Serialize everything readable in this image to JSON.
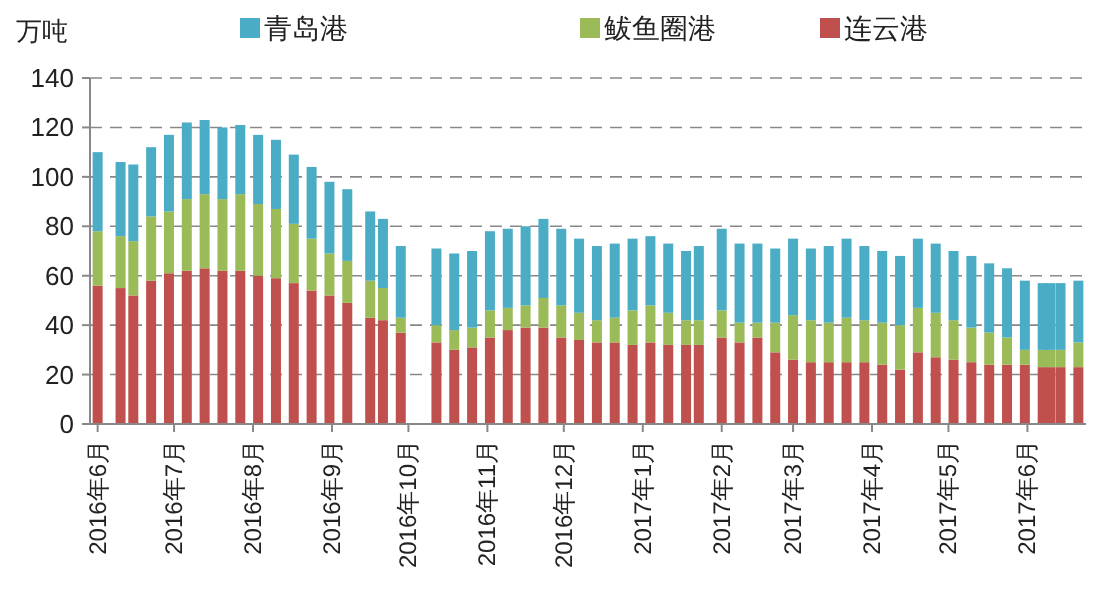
{
  "chart_data": {
    "type": "bar",
    "stacked": true,
    "ylabel": "万吨",
    "legend": "top",
    "grid": "y",
    "x": [
      "2016-06-01",
      "2016-06-10",
      "2016-06-15",
      "2016-06-22",
      "2016-06-29",
      "2016-07-06",
      "2016-07-13",
      "2016-07-20",
      "2016-07-27",
      "2016-08-03",
      "2016-08-10",
      "2016-08-17",
      "2016-08-24",
      "2016-08-31",
      "2016-09-07",
      "2016-09-16",
      "2016-09-21",
      "2016-09-28",
      "2016-10-12",
      "2016-10-19",
      "2016-10-26",
      "2016-11-02",
      "2016-11-09",
      "2016-11-16",
      "2016-11-23",
      "2016-11-30",
      "2016-12-07",
      "2016-12-14",
      "2016-12-21",
      "2016-12-28",
      "2017-01-04",
      "2017-01-11",
      "2017-01-18",
      "2017-01-23",
      "2017-02-01",
      "2017-02-08",
      "2017-02-15",
      "2017-02-22",
      "2017-03-01",
      "2017-03-08",
      "2017-03-15",
      "2017-03-22",
      "2017-03-29",
      "2017-04-05",
      "2017-04-12",
      "2017-04-19",
      "2017-04-26",
      "2017-05-03",
      "2017-05-10",
      "2017-05-17",
      "2017-05-24",
      "2017-05-31",
      "2017-06-07",
      "2017-06-10",
      "2017-06-14",
      "2017-06-21"
    ],
    "xlim": [
      "2016-05-29",
      "2017-06-24"
    ],
    "xticks": [
      {
        "value": "2016-06",
        "label": "2016年6月"
      },
      {
        "value": "2016-07",
        "label": "2016年7月"
      },
      {
        "value": "2016-08",
        "label": "2016年8月"
      },
      {
        "value": "2016-09",
        "label": "2016年9月"
      },
      {
        "value": "2016-10",
        "label": "2016年10月"
      },
      {
        "value": "2016-11",
        "label": "2016年11月"
      },
      {
        "value": "2016-12",
        "label": "2016年12月"
      },
      {
        "value": "2017-01",
        "label": "2017年1月"
      },
      {
        "value": "2017-02",
        "label": "2017年2月"
      },
      {
        "value": "2017-03",
        "label": "2017年3月"
      },
      {
        "value": "2017-04",
        "label": "2017年4月"
      },
      {
        "value": "2017-05",
        "label": "2017年5月"
      },
      {
        "value": "2017-06",
        "label": "2017年6月"
      }
    ],
    "ylim": [
      0,
      140
    ],
    "yticks": [
      0,
      20,
      40,
      60,
      80,
      100,
      120,
      140
    ],
    "series": [
      {
        "name": "连云港",
        "color": "#c0504d",
        "values": [
          56,
          55,
          52,
          58,
          61,
          62,
          63,
          62,
          62,
          60,
          59,
          57,
          54,
          52,
          49,
          43,
          42,
          37,
          33,
          30,
          31,
          35,
          38,
          39,
          39,
          35,
          34,
          33,
          33,
          32,
          33,
          32,
          32,
          32,
          35,
          33,
          35,
          29,
          26,
          25,
          25,
          25,
          25,
          24,
          22,
          29,
          27,
          26,
          25,
          24,
          24,
          24,
          23,
          23,
          23,
          23
        ]
      },
      {
        "name": "鲅鱼圈港",
        "color": "#9bbb59",
        "values": [
          22,
          21,
          22,
          26,
          25,
          29,
          30,
          29,
          31,
          29,
          28,
          24,
          21,
          17,
          17,
          15,
          13,
          6,
          7,
          8,
          8,
          11,
          9,
          9,
          12,
          13,
          11,
          9,
          10,
          14,
          15,
          13,
          10,
          10,
          11,
          8,
          6,
          12,
          18,
          17,
          16,
          18,
          17,
          17,
          18,
          18,
          18,
          16,
          14,
          13,
          11,
          6,
          7,
          7,
          7,
          10
        ]
      },
      {
        "name": "青岛港",
        "color": "#4bacc6",
        "values": [
          32,
          30,
          31,
          28,
          31,
          31,
          30,
          29,
          28,
          28,
          28,
          28,
          29,
          29,
          29,
          28,
          28,
          29,
          31,
          31,
          31,
          32,
          32,
          32,
          32,
          31,
          30,
          30,
          30,
          29,
          28,
          28,
          28,
          30,
          33,
          32,
          32,
          30,
          31,
          29,
          31,
          32,
          30,
          29,
          28,
          28,
          28,
          28,
          29,
          28,
          28,
          28,
          27,
          27,
          27,
          25
        ]
      }
    ]
  }
}
